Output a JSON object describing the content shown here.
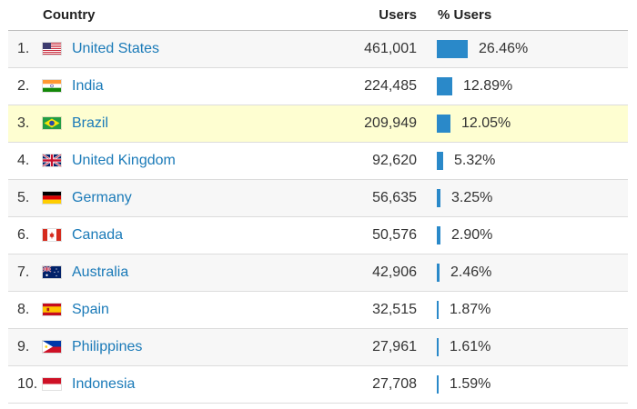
{
  "header": {
    "country": "Country",
    "users": "Users",
    "pct_users": "% Users"
  },
  "accent_color": "#2a89c9",
  "link_color": "#1a7ab8",
  "highlight_color": "#fefed1",
  "rows": [
    {
      "rank": "1.",
      "flag": "us-flag-icon",
      "country": "United States",
      "users": "461,001",
      "pct": "26.46%",
      "pct_value": 26.46
    },
    {
      "rank": "2.",
      "flag": "in-flag-icon",
      "country": "India",
      "users": "224,485",
      "pct": "12.89%",
      "pct_value": 12.89
    },
    {
      "rank": "3.",
      "flag": "br-flag-icon",
      "country": "Brazil",
      "users": "209,949",
      "pct": "12.05%",
      "pct_value": 12.05,
      "highlighted": true
    },
    {
      "rank": "4.",
      "flag": "gb-flag-icon",
      "country": "United Kingdom",
      "users": "92,620",
      "pct": "5.32%",
      "pct_value": 5.32
    },
    {
      "rank": "5.",
      "flag": "de-flag-icon",
      "country": "Germany",
      "users": "56,635",
      "pct": "3.25%",
      "pct_value": 3.25
    },
    {
      "rank": "6.",
      "flag": "ca-flag-icon",
      "country": "Canada",
      "users": "50,576",
      "pct": "2.90%",
      "pct_value": 2.9
    },
    {
      "rank": "7.",
      "flag": "au-flag-icon",
      "country": "Australia",
      "users": "42,906",
      "pct": "2.46%",
      "pct_value": 2.46
    },
    {
      "rank": "8.",
      "flag": "es-flag-icon",
      "country": "Spain",
      "users": "32,515",
      "pct": "1.87%",
      "pct_value": 1.87
    },
    {
      "rank": "9.",
      "flag": "ph-flag-icon",
      "country": "Philippines",
      "users": "27,961",
      "pct": "1.61%",
      "pct_value": 1.61
    },
    {
      "rank": "10.",
      "flag": "id-flag-icon",
      "country": "Indonesia",
      "users": "27,708",
      "pct": "1.59%",
      "pct_value": 1.59
    }
  ]
}
